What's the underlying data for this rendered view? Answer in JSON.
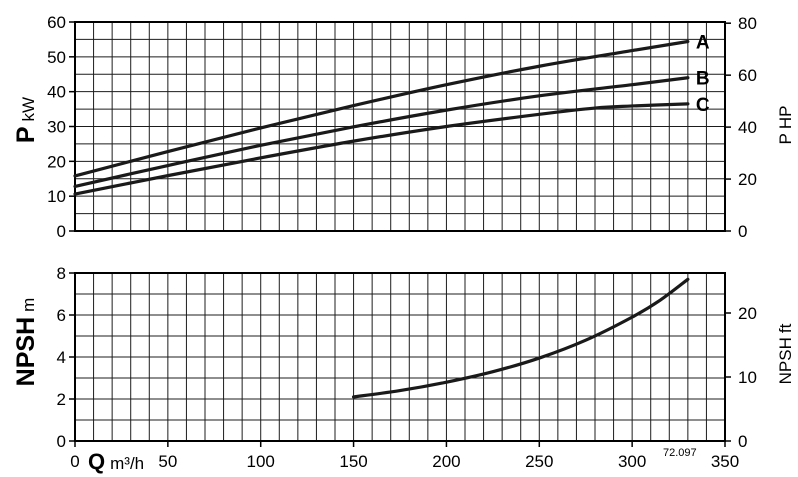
{
  "chart_data": [
    {
      "type": "line",
      "ylabel": {
        "symbol": "P",
        "unit": "kW"
      },
      "y2label": {
        "symbol": "P",
        "unit": "HP"
      },
      "xlim": [
        0,
        350
      ],
      "ylim": [
        0,
        60
      ],
      "yticks": [
        0,
        10,
        20,
        30,
        40,
        50,
        60
      ],
      "y2lim": [
        0,
        80.46
      ],
      "y2ticks": [
        0,
        20,
        40,
        60,
        80
      ],
      "grid": true,
      "line_color": "#000000",
      "series": [
        {
          "name": "A",
          "x": [
            0,
            50,
            100,
            150,
            200,
            250,
            300,
            330
          ],
          "y": [
            15.8,
            22.8,
            29.6,
            36.0,
            42.0,
            47.3,
            51.8,
            54.4
          ]
        },
        {
          "name": "B",
          "x": [
            0,
            50,
            100,
            150,
            200,
            250,
            300,
            330
          ],
          "y": [
            12.8,
            18.8,
            24.6,
            29.9,
            34.7,
            38.8,
            42.0,
            44.0
          ]
        },
        {
          "name": "C",
          "x": [
            0,
            50,
            100,
            150,
            200,
            250,
            280,
            300,
            330
          ],
          "y": [
            10.6,
            15.9,
            21.0,
            25.8,
            30.0,
            33.5,
            35.3,
            35.9,
            36.5
          ]
        }
      ]
    },
    {
      "type": "line",
      "xlabel": {
        "symbol": "Q",
        "unit": "m³/h"
      },
      "ylabel": {
        "symbol": "NPSH",
        "unit": "m"
      },
      "y2label": {
        "symbol": "NPSH",
        "unit": "ft"
      },
      "xlim": [
        0,
        350
      ],
      "xticks": [
        0,
        50,
        100,
        150,
        200,
        250,
        300,
        350
      ],
      "ylim": [
        0,
        8
      ],
      "yticks": [
        0,
        2,
        4,
        6,
        8
      ],
      "y2lim": [
        0,
        26.25
      ],
      "y2ticks": [
        0,
        10,
        20
      ],
      "grid": true,
      "line_color": "#000000",
      "annotation": "72.097",
      "series": [
        {
          "x": [
            150,
            175,
            200,
            225,
            250,
            275,
            300,
            315,
            330
          ],
          "y": [
            2.1,
            2.4,
            2.8,
            3.3,
            3.95,
            4.8,
            5.9,
            6.7,
            7.7
          ]
        }
      ]
    }
  ]
}
